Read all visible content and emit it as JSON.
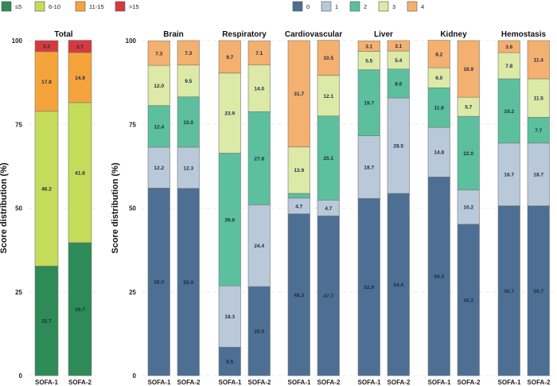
{
  "chart_data": [
    {
      "type": "bar",
      "stacked": true,
      "title": "Total",
      "ylabel": "Score distribution (%)",
      "ylim": [
        0,
        100
      ],
      "yticks": [
        0,
        25,
        50,
        75,
        100
      ],
      "grid": true,
      "legend_position": "top-left",
      "categories": [
        "SOFA-1",
        "SOFA-2"
      ],
      "series": [
        {
          "name": "≤5",
          "color": "#2e8b57",
          "values": [
            32.7,
            39.7
          ]
        },
        {
          "name": "6-10",
          "color": "#c5dc5a",
          "values": [
            46.2,
            41.8
          ]
        },
        {
          "name": "11-15",
          "color": "#f5a43c",
          "values": [
            17.8,
            14.9
          ]
        },
        {
          "name": ">15",
          "color": "#d63a3f",
          "values": [
            3.3,
            3.7
          ]
        }
      ]
    },
    {
      "type": "bar",
      "stacked": true,
      "ylabel": "Score distribution (%)",
      "ylim": [
        0,
        100
      ],
      "yticks": [
        0,
        25,
        50,
        75,
        100
      ],
      "grid": true,
      "legend_position": "top-center",
      "legend": [
        {
          "name": "0",
          "color": "#4d6f93"
        },
        {
          "name": "1",
          "color": "#b9c9d9"
        },
        {
          "name": "2",
          "color": "#5cbf9d"
        },
        {
          "name": "3",
          "color": "#dde9a6"
        },
        {
          "name": "4",
          "color": "#f4b06f"
        }
      ],
      "categories": [
        "SOFA-1",
        "SOFA-2"
      ],
      "facets": [
        {
          "title": "Brain",
          "values": [
            [
              56.0,
              12.2,
              12.4,
              12.0,
              7.3
            ],
            [
              55.9,
              12.3,
              15.0,
              9.5,
              7.3
            ]
          ]
        },
        {
          "title": "Respiratory",
          "values": [
            [
              8.5,
              18.3,
              39.6,
              23.9,
              9.7
            ],
            [
              26.6,
              24.4,
              27.8,
              14.0,
              7.1
            ]
          ]
        },
        {
          "title": "Cardiovascular",
          "values": [
            [
              48.3,
              4.7,
              1.4,
              13.9,
              31.7
            ],
            [
              47.7,
              4.7,
              25.1,
              12.1,
              10.5
            ]
          ]
        },
        {
          "title": "Liver",
          "values": [
            [
              52.9,
              18.7,
              19.7,
              5.5,
              3.1
            ],
            [
              54.4,
              28.5,
              8.6,
              5.4,
              3.1
            ]
          ]
        },
        {
          "title": "Kidney",
          "values": [
            [
              59.3,
              14.8,
              11.8,
              6.0,
              8.2
            ],
            [
              45.2,
              10.2,
              22.0,
              5.7,
              16.9
            ]
          ]
        },
        {
          "title": "Hemostasis",
          "values": [
            [
              50.7,
              18.7,
              19.2,
              7.8,
              3.6
            ],
            [
              50.7,
              18.7,
              7.7,
              11.5,
              11.4
            ]
          ]
        }
      ]
    }
  ]
}
